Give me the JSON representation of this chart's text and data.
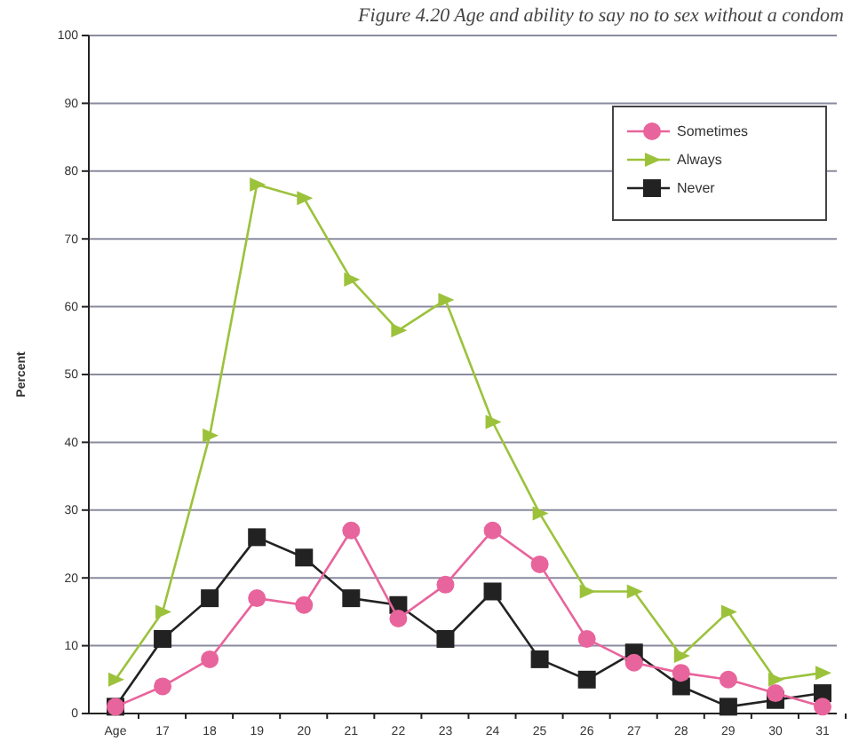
{
  "chart_data": {
    "type": "line",
    "title": "Figure 4.20 Age and ability to say no to sex without a condom",
    "ylabel": "Percent",
    "categories": [
      "Age",
      "17",
      "18",
      "19",
      "20",
      "21",
      "22",
      "23",
      "24",
      "25",
      "26",
      "27",
      "28",
      "29",
      "30",
      "31"
    ],
    "series": [
      {
        "name": "Sometimes",
        "color": "#e8649c",
        "marker": "circle",
        "values": [
          1,
          4,
          8,
          17,
          16,
          27,
          14,
          19,
          27,
          22,
          11,
          7.5,
          6,
          5,
          3,
          1
        ]
      },
      {
        "name": "Always",
        "color": "#9cc23c",
        "marker": "triangle",
        "values": [
          5,
          15,
          41,
          78,
          76,
          64,
          56.5,
          61,
          43,
          29.5,
          18,
          18,
          8.5,
          15,
          5,
          6
        ]
      },
      {
        "name": "Never",
        "color": "#222222",
        "marker": "square",
        "values": [
          1,
          11,
          17,
          26,
          23,
          17,
          16,
          11,
          18,
          8,
          5,
          9,
          4,
          1,
          2,
          3
        ]
      }
    ],
    "ylim": [
      0,
      100
    ],
    "yticks": [
      0,
      10,
      20,
      30,
      40,
      50,
      60,
      70,
      80,
      90,
      100
    ],
    "grid": "y",
    "legend": "top right"
  }
}
